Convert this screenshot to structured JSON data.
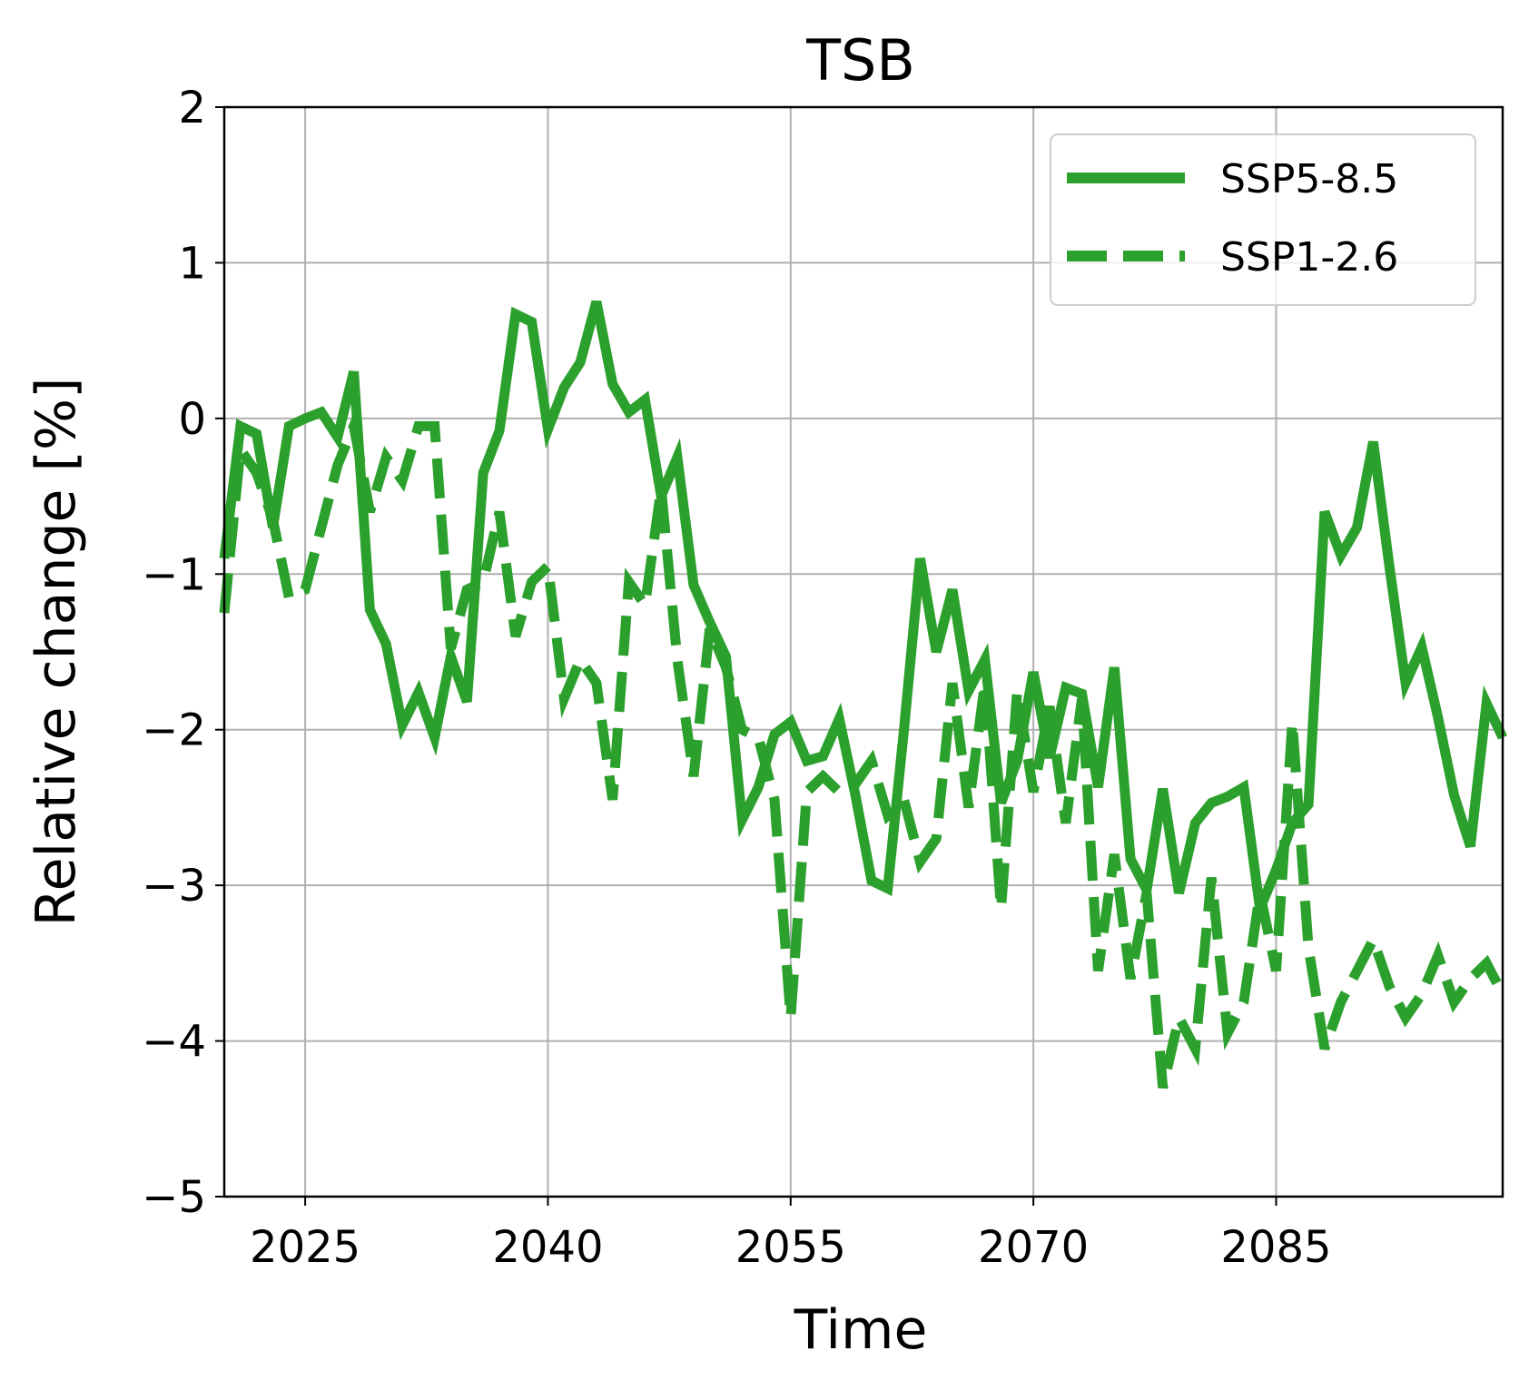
{
  "chart_data": {
    "type": "line",
    "title": "TSB",
    "xlabel": "Time",
    "ylabel": "Relative change [%]",
    "xlim": [
      2020,
      2099
    ],
    "ylim": [
      -5,
      2
    ],
    "xticks": [
      2025,
      2040,
      2055,
      2070,
      2085
    ],
    "yticks": [
      -5,
      -4,
      -3,
      -2,
      -1,
      0,
      1,
      2
    ],
    "ytick_labels": [
      "−5",
      "−4",
      "−3",
      "−2",
      "−1",
      "0",
      "1",
      "2"
    ],
    "grid": true,
    "legend_position": "top-right",
    "color": "#2ca02c",
    "series": [
      {
        "name": "SSP5-8.5",
        "style": "solid",
        "x": [
          2020,
          2021,
          2022,
          2023,
          2024,
          2025,
          2026,
          2027,
          2028,
          2029,
          2030,
          2031,
          2032,
          2033,
          2034,
          2035,
          2036,
          2037,
          2038,
          2039,
          2040,
          2041,
          2042,
          2043,
          2044,
          2045,
          2046,
          2047,
          2048,
          2049,
          2050,
          2051,
          2052,
          2053,
          2054,
          2055,
          2056,
          2057,
          2058,
          2059,
          2060,
          2061,
          2062,
          2063,
          2064,
          2065,
          2066,
          2067,
          2068,
          2069,
          2070,
          2071,
          2072,
          2073,
          2074,
          2075,
          2076,
          2077,
          2078,
          2079,
          2080,
          2081,
          2082,
          2083,
          2084,
          2085,
          2086,
          2087,
          2088,
          2089,
          2090,
          2091,
          2092,
          2093,
          2094,
          2095,
          2096,
          2097,
          2098,
          2099
        ],
        "y": [
          -0.9,
          -0.05,
          -0.1,
          -0.7,
          -0.05,
          0.0,
          0.04,
          -0.12,
          0.3,
          -1.23,
          -1.45,
          -1.97,
          -1.76,
          -2.05,
          -1.53,
          -1.82,
          -0.35,
          -0.08,
          0.67,
          0.62,
          -0.07,
          0.2,
          0.36,
          0.75,
          0.22,
          0.04,
          0.12,
          -0.5,
          -0.25,
          -1.07,
          -1.31,
          -1.53,
          -2.58,
          -2.37,
          -2.03,
          -1.95,
          -2.2,
          -2.17,
          -1.93,
          -2.42,
          -2.97,
          -3.02,
          -2.0,
          -0.9,
          -1.5,
          -1.1,
          -1.75,
          -1.55,
          -2.47,
          -2.2,
          -1.63,
          -2.18,
          -1.73,
          -1.77,
          -2.37,
          -1.6,
          -2.83,
          -3.03,
          -2.38,
          -3.05,
          -2.6,
          -2.47,
          -2.43,
          -2.37,
          -3.15,
          -2.9,
          -2.6,
          -2.48,
          -0.6,
          -0.88,
          -0.7,
          -0.15,
          -0.95,
          -1.7,
          -1.47,
          -1.92,
          -2.42,
          -2.75,
          -1.83,
          -2.05
        ]
      },
      {
        "name": "SSP1-2.6",
        "style": "dashed",
        "x": [
          2020,
          2021,
          2022,
          2023,
          2024,
          2025,
          2026,
          2027,
          2028,
          2029,
          2030,
          2031,
          2032,
          2033,
          2034,
          2035,
          2036,
          2037,
          2038,
          2039,
          2040,
          2041,
          2042,
          2043,
          2044,
          2045,
          2046,
          2047,
          2048,
          2049,
          2050,
          2051,
          2052,
          2053,
          2054,
          2055,
          2056,
          2057,
          2058,
          2059,
          2060,
          2061,
          2062,
          2063,
          2064,
          2065,
          2066,
          2067,
          2068,
          2069,
          2070,
          2071,
          2072,
          2073,
          2074,
          2075,
          2076,
          2077,
          2078,
          2079,
          2080,
          2081,
          2082,
          2083,
          2084,
          2085,
          2086,
          2087,
          2088,
          2089,
          2090,
          2091,
          2092,
          2093,
          2094,
          2095,
          2096,
          2097,
          2098,
          2099
        ],
        "y": [
          -1.25,
          -0.2,
          -0.35,
          -0.65,
          -1.15,
          -1.1,
          -0.7,
          -0.3,
          -0.05,
          -0.6,
          -0.25,
          -0.4,
          -0.05,
          -0.05,
          -1.48,
          -1.1,
          -1.05,
          -0.6,
          -1.4,
          -1.05,
          -0.95,
          -1.8,
          -1.55,
          -1.7,
          -2.45,
          -1.05,
          -1.2,
          -0.45,
          -1.55,
          -2.3,
          -1.35,
          -1.6,
          -2.0,
          -2.05,
          -2.45,
          -3.85,
          -2.4,
          -2.3,
          -2.4,
          -2.35,
          -2.2,
          -2.55,
          -2.45,
          -2.85,
          -2.7,
          -1.7,
          -2.5,
          -1.7,
          -3.15,
          -1.75,
          -2.4,
          -1.85,
          -2.6,
          -1.8,
          -3.55,
          -2.8,
          -3.6,
          -3.05,
          -4.3,
          -3.85,
          -4.05,
          -2.95,
          -3.95,
          -3.75,
          -3.05,
          -3.55,
          -1.95,
          -3.4,
          -4.05,
          -3.75,
          -3.55,
          -3.35,
          -3.65,
          -3.85,
          -3.7,
          -3.45,
          -3.75,
          -3.6,
          -3.5,
          -3.7
        ]
      }
    ]
  }
}
